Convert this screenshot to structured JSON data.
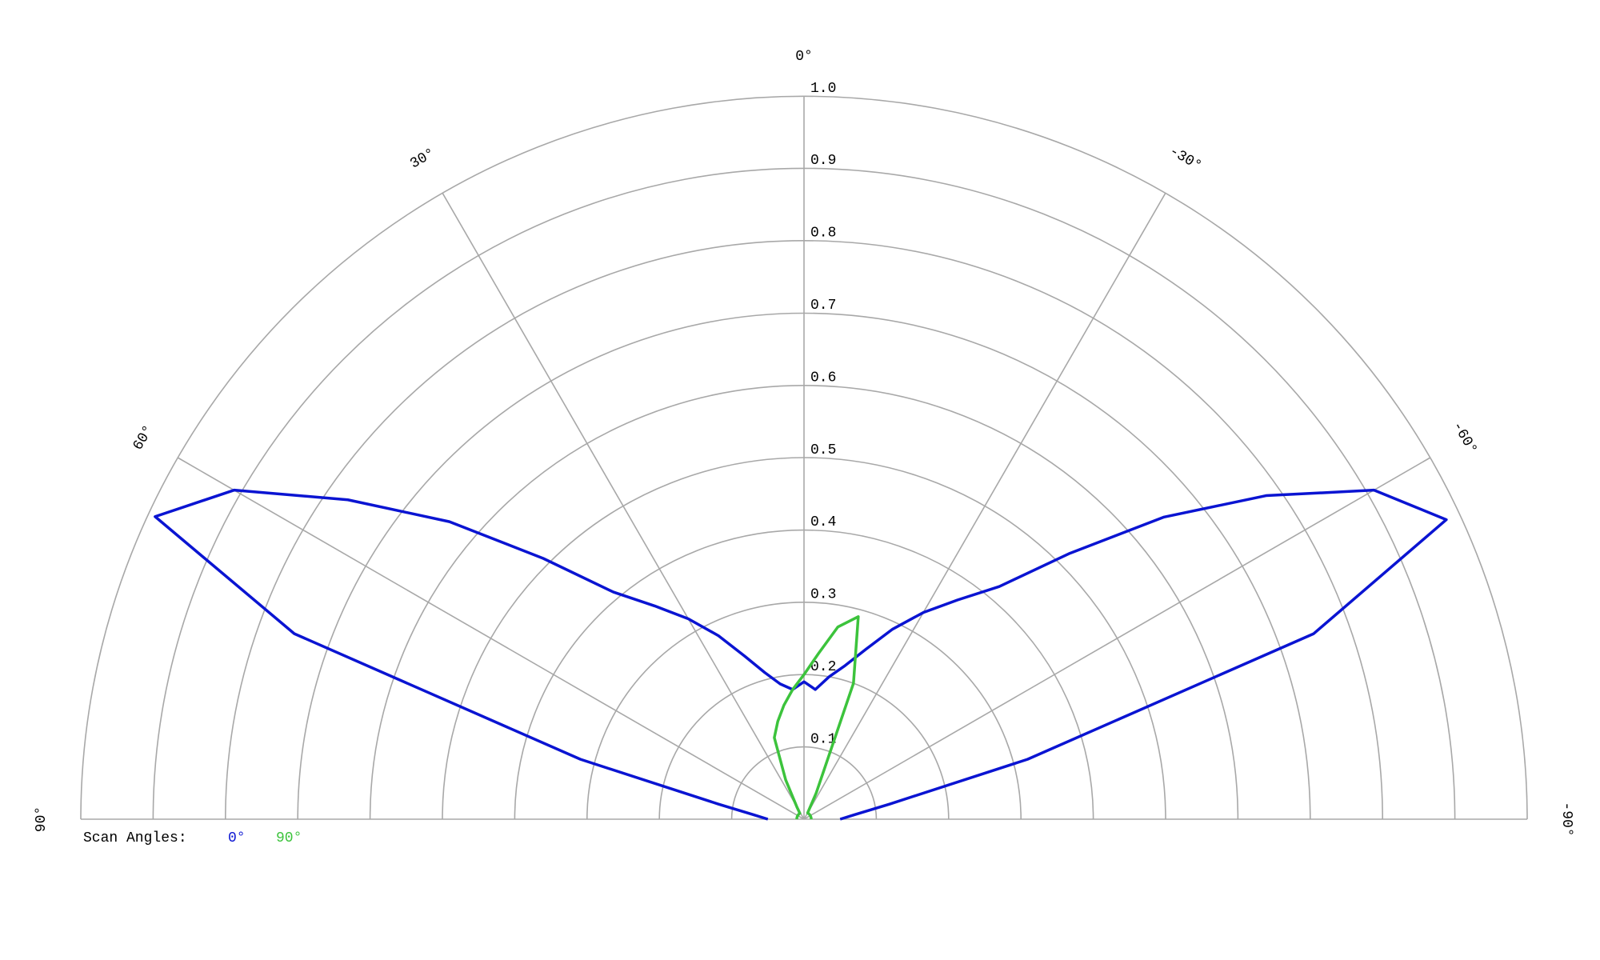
{
  "chart_data": {
    "type": "polar",
    "legend_title": "Scan Angles:",
    "theta": [
      90,
      85,
      80,
      75,
      70,
      65,
      60,
      55,
      50,
      45,
      40,
      35,
      30,
      25,
      20,
      15,
      10,
      5,
      0,
      -5,
      -10,
      -15,
      -20,
      -25,
      -30,
      -35,
      -40,
      -45,
      -50,
      -55,
      -60,
      -65,
      -70,
      -75,
      -80,
      -85,
      -90
    ],
    "thetalim": [
      -90,
      90
    ],
    "thetaticks": [
      {
        "value": 0,
        "label": "0°"
      },
      {
        "value": 30,
        "label": "30°"
      },
      {
        "value": 60,
        "label": "60°"
      },
      {
        "value": 90,
        "label": "90°"
      },
      {
        "value": -30,
        "label": "-30°"
      },
      {
        "value": -60,
        "label": "-60°"
      },
      {
        "value": -90,
        "label": "-90°"
      }
    ],
    "rlim": [
      0,
      1
    ],
    "rticks": [
      0.1,
      0.2,
      0.3,
      0.4,
      0.5,
      0.6,
      0.7,
      0.8,
      0.9,
      {
        "value": 1,
        "label": "1.0"
      }
    ],
    "grid": true,
    "series": [
      {
        "name": "0°",
        "color": "#0a14d2",
        "values": [
          0.05,
          0.07,
          0.12,
          0.32,
          0.75,
          0.99,
          0.91,
          0.77,
          0.64,
          0.51,
          0.41,
          0.36,
          0.32,
          0.28,
          0.24,
          0.21,
          0.19,
          0.18,
          0.19,
          0.18,
          0.2,
          0.22,
          0.25,
          0.29,
          0.33,
          0.37,
          0.42,
          0.52,
          0.65,
          0.78,
          0.91,
          0.98,
          0.75,
          0.32,
          0.12,
          0.07,
          0.05
        ]
      },
      {
        "name": "90°",
        "color": "#3cc33c",
        "values": [
          0.01,
          0.01,
          0.01,
          0.01,
          0.01,
          0.01,
          0.01,
          0.01,
          0.01,
          0.01,
          0.01,
          0.01,
          0.02,
          0.06,
          0.12,
          0.14,
          0.16,
          0.18,
          0.2,
          0.23,
          0.27,
          0.29,
          0.2,
          0.04,
          0.01,
          0.01,
          0.01,
          0.01,
          0.01,
          0.01,
          0.01,
          0.01,
          0.01,
          0.01,
          0.01,
          0.01,
          0.01
        ]
      }
    ]
  }
}
